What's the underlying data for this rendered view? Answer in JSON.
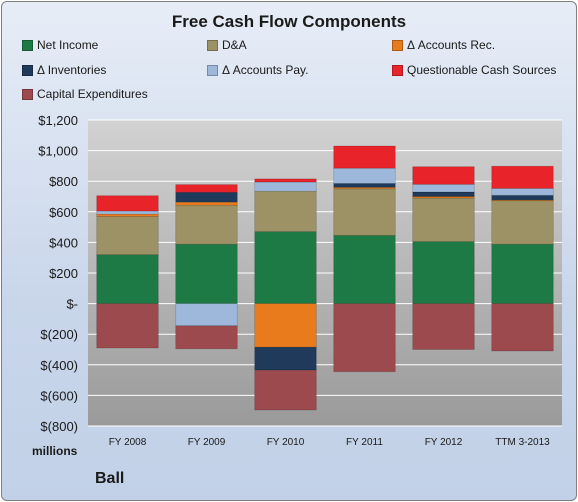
{
  "chart_data": {
    "type": "bar",
    "stacked": true,
    "title": "Free Cash Flow Components",
    "categories": [
      "FY 2008",
      "FY 2009",
      "FY 2010",
      "FY 2011",
      "FY 2012",
      "TTM 3-2013"
    ],
    "ylim": [
      -800,
      1200
    ],
    "yticks": [
      {
        "value": 1200,
        "label": "$1,200"
      },
      {
        "value": 1000,
        "label": "$1,000"
      },
      {
        "value": 800,
        "label": "$800"
      },
      {
        "value": 600,
        "label": "$600"
      },
      {
        "value": 400,
        "label": "$400"
      },
      {
        "value": 200,
        "label": "$200"
      },
      {
        "value": 0,
        "label": "$-"
      },
      {
        "value": -200,
        "label": "$(200)"
      },
      {
        "value": -400,
        "label": "$(400)"
      },
      {
        "value": -600,
        "label": "$(600)"
      },
      {
        "value": -800,
        "label": "$(800)"
      }
    ],
    "ylabel_units": "millions",
    "grid": true,
    "legend_position": "top",
    "series": [
      {
        "name": "Net Income",
        "color": "#1e7a45",
        "values": [
          320,
          388,
          470,
          445,
          405,
          388
        ]
      },
      {
        "name": "D&A",
        "color": "#9c9265",
        "values": [
          250,
          255,
          265,
          305,
          285,
          285
        ]
      },
      {
        "name": "Δ Accounts Rec.",
        "color": "#e97b1c",
        "values": [
          15,
          20,
          -285,
          10,
          10,
          5
        ]
      },
      {
        "name": "Δ Inventories",
        "color": "#1f3a5a",
        "values": [
          0,
          65,
          -150,
          25,
          30,
          30
        ]
      },
      {
        "name": "Δ Accounts Pay.",
        "color": "#9db8da",
        "values": [
          20,
          -145,
          60,
          100,
          50,
          45
        ]
      },
      {
        "name": "Questionable Cash Sources",
        "color": "#e8232a",
        "values": [
          100,
          50,
          20,
          145,
          115,
          145
        ]
      },
      {
        "name": "Capital Expenditures",
        "color": "#9c4a4d",
        "values": [
          -290,
          -150,
          -260,
          -445,
          -300,
          -310
        ]
      }
    ]
  },
  "units_label": "millions",
  "company_label": "Ball"
}
